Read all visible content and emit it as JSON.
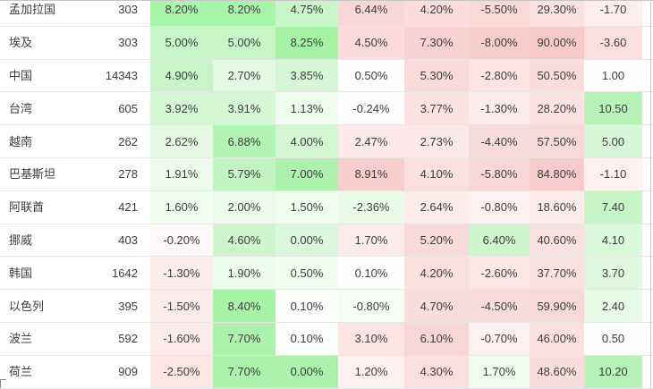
{
  "palette": {
    "strong_green": "#a8f4a8",
    "strong_pink": "#f7caca",
    "separator_gray": "#e6e6e6",
    "border_gray": "#c6c6c6",
    "text_color": "#3d3d3d"
  },
  "chart_data": {
    "type": "heatmap",
    "title": "",
    "columns": [
      "country",
      "count",
      "m1",
      "m2",
      "m3",
      "m4",
      "m5",
      "m6",
      "m7",
      "m8"
    ],
    "rows": [
      {
        "country": "孟加拉国",
        "count": "303",
        "cells": [
          {
            "text": "8.20%",
            "bg": "#a8f4a8"
          },
          {
            "text": "8.20%",
            "bg": "#a8f4a8"
          },
          {
            "text": "4.75%",
            "bg": "#c9f6c9"
          },
          {
            "text": "6.44%",
            "bg": "#f9d6d6"
          },
          {
            "text": "4.20%",
            "bg": "#fadcdc"
          },
          {
            "text": "-5.50%",
            "bg": "#f9d8d8"
          },
          {
            "text": "29.30%",
            "bg": "#fbe2e2"
          },
          {
            "text": "-1.70",
            "bg": "#fdeeee"
          }
        ]
      },
      {
        "country": "埃及",
        "count": "303",
        "cells": [
          {
            "text": "5.00%",
            "bg": "#c6f5c6"
          },
          {
            "text": "5.00%",
            "bg": "#c6f5c6"
          },
          {
            "text": "8.25%",
            "bg": "#a6f3a6"
          },
          {
            "text": "4.50%",
            "bg": "#fadada"
          },
          {
            "text": "7.30%",
            "bg": "#f8d2d2"
          },
          {
            "text": "-8.00%",
            "bg": "#f7cccc"
          },
          {
            "text": "90.00%",
            "bg": "#f7caca"
          },
          {
            "text": "-3.60",
            "bg": "#fbdede"
          }
        ]
      },
      {
        "country": "中国",
        "count": "14343",
        "cells": [
          {
            "text": "4.90%",
            "bg": "#c7f5c7"
          },
          {
            "text": "2.70%",
            "bg": "#e4f9e4"
          },
          {
            "text": "3.85%",
            "bg": "#d5f7d5"
          },
          {
            "text": "0.50%",
            "bg": "#fffefe"
          },
          {
            "text": "5.30%",
            "bg": "#f9d9d9"
          },
          {
            "text": "-2.80%",
            "bg": "#fce4e4"
          },
          {
            "text": "50.50%",
            "bg": "#fadcdc"
          },
          {
            "text": "1.00",
            "bg": "#fdfefd"
          }
        ]
      },
      {
        "country": "台湾",
        "count": "605",
        "cells": [
          {
            "text": "3.92%",
            "bg": "#d4f7d4"
          },
          {
            "text": "3.91%",
            "bg": "#d4f7d4"
          },
          {
            "text": "1.13%",
            "bg": "#f0fcf0"
          },
          {
            "text": "-0.24%",
            "bg": "#fdfdfd"
          },
          {
            "text": "3.77%",
            "bg": "#fbe3e3"
          },
          {
            "text": "-1.30%",
            "bg": "#fdecec"
          },
          {
            "text": "28.20%",
            "bg": "#fbe3e3"
          },
          {
            "text": "10.50",
            "bg": "#b7f3b7"
          }
        ]
      },
      {
        "country": "越南",
        "count": "262",
        "cells": [
          {
            "text": "2.62%",
            "bg": "#e5f9e5"
          },
          {
            "text": "6.88%",
            "bg": "#b2f2b2"
          },
          {
            "text": "4.00%",
            "bg": "#d2f7d2"
          },
          {
            "text": "2.47%",
            "bg": "#fce9e9"
          },
          {
            "text": "2.73%",
            "bg": "#fce9e9"
          },
          {
            "text": "-4.40%",
            "bg": "#fadbdb"
          },
          {
            "text": "57.50%",
            "bg": "#f9dada"
          },
          {
            "text": "5.00",
            "bg": "#d5f7d5"
          }
        ]
      },
      {
        "country": "巴基斯坦",
        "count": "278",
        "cells": [
          {
            "text": "1.91%",
            "bg": "#edfbed"
          },
          {
            "text": "5.79%",
            "bg": "#c1f4c1"
          },
          {
            "text": "7.00%",
            "bg": "#adf2ad"
          },
          {
            "text": "8.91%",
            "bg": "#f7cdcd"
          },
          {
            "text": "4.10%",
            "bg": "#fbdede"
          },
          {
            "text": "-5.80%",
            "bg": "#f9d7d7"
          },
          {
            "text": "84.80%",
            "bg": "#f8cccc"
          },
          {
            "text": "-1.10",
            "bg": "#fdf0f0"
          }
        ]
      },
      {
        "country": "阿联酋",
        "count": "421",
        "cells": [
          {
            "text": "1.60%",
            "bg": "#f0fcf0"
          },
          {
            "text": "2.00%",
            "bg": "#ebfaeb"
          },
          {
            "text": "1.50%",
            "bg": "#f1fcf1"
          },
          {
            "text": "-2.36%",
            "bg": "#e9fae9"
          },
          {
            "text": "2.64%",
            "bg": "#fcebeb"
          },
          {
            "text": "-0.80%",
            "bg": "#fdf0f0"
          },
          {
            "text": "18.60%",
            "bg": "#fcecec"
          },
          {
            "text": "7.40",
            "bg": "#c5f5c5"
          }
        ]
      },
      {
        "country": "挪威",
        "count": "403",
        "cells": [
          {
            "text": "-0.20%",
            "bg": "#fdf7f7"
          },
          {
            "text": "4.60%",
            "bg": "#cdf6cd"
          },
          {
            "text": "0.00%",
            "bg": "#dcf8dc"
          },
          {
            "text": "1.70%",
            "bg": "#fcebeb"
          },
          {
            "text": "5.20%",
            "bg": "#f9dada"
          },
          {
            "text": "6.40%",
            "bg": "#cdf6cd"
          },
          {
            "text": "40.60%",
            "bg": "#fae1e1"
          },
          {
            "text": "4.10",
            "bg": "#daf8da"
          }
        ]
      },
      {
        "country": "韩国",
        "count": "1642",
        "cells": [
          {
            "text": "-1.30%",
            "bg": "#fcecec"
          },
          {
            "text": "1.90%",
            "bg": "#edfbed"
          },
          {
            "text": "0.50%",
            "bg": "#f2fdf2"
          },
          {
            "text": "0.10%",
            "bg": "#fffefe"
          },
          {
            "text": "4.20%",
            "bg": "#fbdfdf"
          },
          {
            "text": "-2.60%",
            "bg": "#fce7e7"
          },
          {
            "text": "37.70%",
            "bg": "#fae2e2"
          },
          {
            "text": "3.70",
            "bg": "#ddf8dd"
          }
        ]
      },
      {
        "country": "以色列",
        "count": "395",
        "cells": [
          {
            "text": "-1.50%",
            "bg": "#fcebeb"
          },
          {
            "text": "8.40%",
            "bg": "#a6f3a6"
          },
          {
            "text": "0.10%",
            "bg": "#fcfefc"
          },
          {
            "text": "-0.80%",
            "bg": "#f5fdf5"
          },
          {
            "text": "4.70%",
            "bg": "#fadcdc"
          },
          {
            "text": "-4.50%",
            "bg": "#fadbdb"
          },
          {
            "text": "59.90%",
            "bg": "#f9d8d8"
          },
          {
            "text": "2.40",
            "bg": "#e8fae8"
          }
        ]
      },
      {
        "country": "波兰",
        "count": "592",
        "cells": [
          {
            "text": "-1.60%",
            "bg": "#fcebeb"
          },
          {
            "text": "7.70%",
            "bg": "#acf2ac"
          },
          {
            "text": "0.10%",
            "bg": "#fcfefc"
          },
          {
            "text": "3.10%",
            "bg": "#fbe5e5"
          },
          {
            "text": "6.10%",
            "bg": "#f9d6d6"
          },
          {
            "text": "-0.70%",
            "bg": "#fdf1f1"
          },
          {
            "text": "46.00%",
            "bg": "#fadfdf"
          },
          {
            "text": "0.50",
            "bg": "#fffefe"
          }
        ]
      },
      {
        "country": "荷兰",
        "count": "909",
        "cells": [
          {
            "text": "-2.50%",
            "bg": "#fce6e6"
          },
          {
            "text": "7.70%",
            "bg": "#acf2ac"
          },
          {
            "text": "0.00%",
            "bg": "#acf2ac"
          },
          {
            "text": "1.20%",
            "bg": "#fdf0f0"
          },
          {
            "text": "4.30%",
            "bg": "#fbdede"
          },
          {
            "text": "1.70%",
            "bg": "#f0fcf0"
          },
          {
            "text": "48.60%",
            "bg": "#fadddd"
          },
          {
            "text": "10.20",
            "bg": "#b7f3b7"
          }
        ]
      }
    ]
  }
}
